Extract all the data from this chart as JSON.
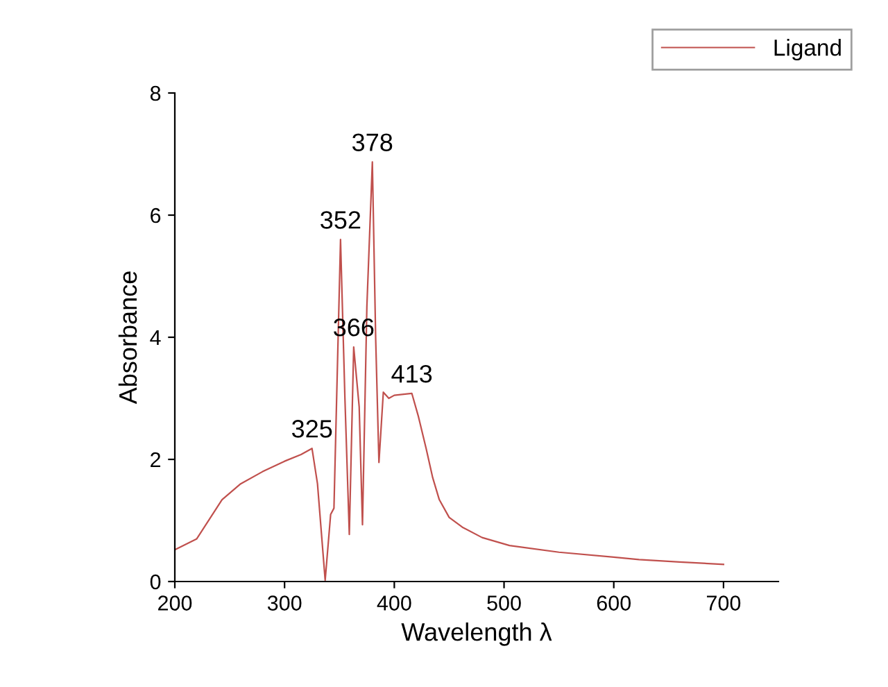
{
  "chart_data": {
    "type": "line",
    "xlabel": "Wavelength λ",
    "ylabel": "Absorbance",
    "xlim": [
      200,
      750
    ],
    "ylim": [
      0,
      8
    ],
    "xticks": [
      200,
      300,
      400,
      500,
      600,
      700
    ],
    "yticks": [
      0,
      2,
      4,
      6,
      8
    ],
    "grid": false,
    "legend": "top right",
    "line_style": "solid",
    "series": [
      {
        "name": "Ligand",
        "color": "#c0504d",
        "x": [
          200,
          220,
          243,
          260,
          280,
          300,
          315,
          325,
          330,
          337,
          342,
          345,
          351,
          355,
          359,
          363,
          368,
          371,
          375,
          380,
          383,
          386,
          390,
          395,
          400,
          410,
          416,
          422,
          429,
          435,
          441,
          450,
          462,
          480,
          505,
          550,
          600,
          623,
          660,
          700
        ],
        "values": [
          0.52,
          0.7,
          1.34,
          1.6,
          1.8,
          1.97,
          2.08,
          2.18,
          1.6,
          0.02,
          1.1,
          1.2,
          5.6,
          3.0,
          0.77,
          3.84,
          2.86,
          0.93,
          4.5,
          6.87,
          4.0,
          1.95,
          3.1,
          3.0,
          3.05,
          3.07,
          3.08,
          2.7,
          2.18,
          1.7,
          1.34,
          1.05,
          0.89,
          0.72,
          0.59,
          0.48,
          0.4,
          0.36,
          0.32,
          0.28
        ]
      }
    ],
    "annotations": [
      {
        "text": "325",
        "x": 325,
        "y": 2.18
      },
      {
        "text": "352",
        "x": 351,
        "y": 5.6
      },
      {
        "text": "366",
        "x": 363,
        "y": 3.84
      },
      {
        "text": "378",
        "x": 380,
        "y": 6.87
      },
      {
        "text": "413",
        "x": 416,
        "y": 3.08
      }
    ]
  }
}
